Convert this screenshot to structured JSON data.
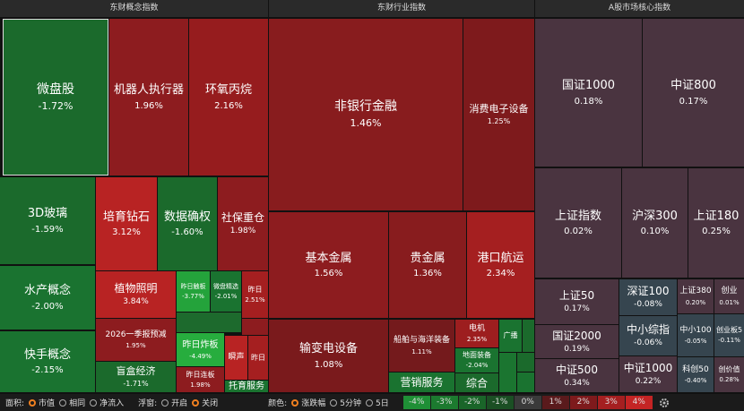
{
  "panels": [
    {
      "title": "东财概念指数",
      "tiles": [
        {
          "name": "微盘股",
          "change": "-1.72%"
        },
        {
          "name": "机器人执行器",
          "change": "1.96%"
        },
        {
          "name": "环氧丙烷",
          "change": "2.16%"
        },
        {
          "name": "3D玻璃",
          "change": "-1.59%"
        },
        {
          "name": "水产概念",
          "change": "-2.00%"
        },
        {
          "name": "快手概念",
          "change": "-2.15%"
        },
        {
          "name": "培育钻石",
          "change": "3.12%"
        },
        {
          "name": "数据确权",
          "change": "-1.60%"
        },
        {
          "name": "社保重仓",
          "change": "1.98%"
        },
        {
          "name": "植物照明",
          "change": "3.84%"
        },
        {
          "name": "2026一季报预减",
          "change": "1.95%"
        },
        {
          "name": "盲盒经济",
          "change": "-1.71%"
        },
        {
          "name": "昨日触板",
          "change": "-3.77%"
        },
        {
          "name": "微盘精选",
          "change": "-2.01%"
        },
        {
          "name": "昨日",
          "change": "2.51%"
        },
        {
          "name": "昨日炸板",
          "change": "-4.49%"
        },
        {
          "name": "昨日连板",
          "change": "1.98%"
        },
        {
          "name": "瞬声"
        },
        {
          "name": "昨日"
        },
        {
          "name": "托育服务"
        }
      ]
    },
    {
      "title": "东财行业指数",
      "tiles": [
        {
          "name": "非银行金融",
          "change": "1.46%"
        },
        {
          "name": "消费电子设备",
          "change": "1.25%"
        },
        {
          "name": "基本金属",
          "change": "1.56%"
        },
        {
          "name": "贵金属",
          "change": "1.36%"
        },
        {
          "name": "港口航运",
          "change": "2.34%"
        },
        {
          "name": "输变电设备",
          "change": "1.08%"
        },
        {
          "name": "船舶与海洋装备",
          "change": "1.11%"
        },
        {
          "name": "电机",
          "change": "2.35%"
        },
        {
          "name": "地面装备",
          "change": "-2.04%"
        },
        {
          "name": "广播"
        },
        {
          "name": "营销服务"
        },
        {
          "name": "综合"
        }
      ]
    },
    {
      "title": "A股市场核心指数",
      "tiles": [
        {
          "name": "国证1000",
          "change": "0.18%"
        },
        {
          "name": "中证800",
          "change": "0.17%"
        },
        {
          "name": "上证指数",
          "change": "0.02%"
        },
        {
          "name": "沪深300",
          "change": "0.10%"
        },
        {
          "name": "上证180",
          "change": "0.25%"
        },
        {
          "name": "上证50",
          "change": "0.17%"
        },
        {
          "name": "国证2000",
          "change": "0.19%"
        },
        {
          "name": "中证500",
          "change": "0.34%"
        },
        {
          "name": "深证100",
          "change": "-0.08%"
        },
        {
          "name": "中小综指",
          "change": "-0.06%"
        },
        {
          "name": "中证1000",
          "change": "0.22%"
        },
        {
          "name": "上证380",
          "change": "0.20%"
        },
        {
          "name": "创业",
          "change": "0.01%"
        },
        {
          "name": "中小100",
          "change": "-0.05%"
        },
        {
          "name": "创业板5",
          "change": "-0.11%"
        },
        {
          "name": "科创50",
          "change": "-0.40%"
        },
        {
          "name": "创价值",
          "change": "0.28%"
        }
      ]
    }
  ],
  "footer": {
    "area_label": "面积:",
    "area_options": [
      "市值",
      "相同",
      "净流入"
    ],
    "float_label": "浮窗:",
    "float_options": [
      "开启",
      "关闭"
    ],
    "color_label": "颜色:",
    "color_options": [
      "涨跌幅",
      "5分钟",
      "5日"
    ],
    "legend": [
      "-4%",
      "-3%",
      "-2%",
      "-1%",
      "0%",
      "1%",
      "2%",
      "3%",
      "4%"
    ]
  }
}
